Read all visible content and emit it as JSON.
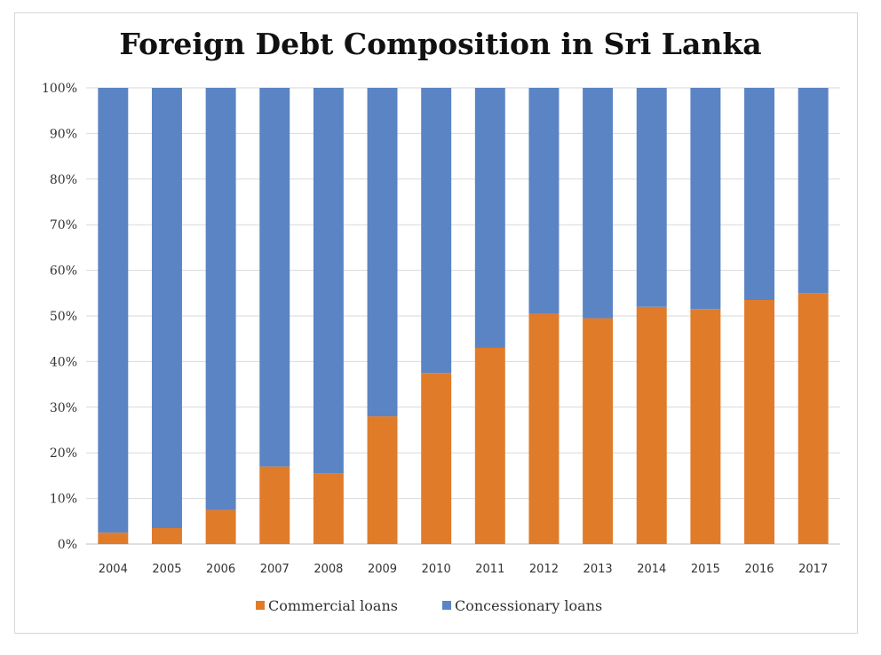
{
  "chart_data": {
    "type": "bar",
    "stacked": true,
    "title": "Foreign Debt Composition in Sri Lanka",
    "categories": [
      "2004",
      "2005",
      "2006",
      "2007",
      "2008",
      "2009",
      "2010",
      "2011",
      "2012",
      "2013",
      "2014",
      "2015",
      "2016",
      "2017"
    ],
    "series": [
      {
        "name": "Commercial loans",
        "color": "#e07b2a",
        "values": [
          2.5,
          3.5,
          7.5,
          17,
          15.5,
          28,
          37.5,
          43,
          50.5,
          49.5,
          52,
          51.5,
          53.5,
          55
        ]
      },
      {
        "name": "Concessionary loans",
        "color": "#5b84c4",
        "values": [
          97.5,
          96.5,
          92.5,
          83,
          84.5,
          72,
          62.5,
          57,
          49.5,
          50.5,
          48,
          48.5,
          46.5,
          45
        ]
      }
    ],
    "yticks": [
      "0%",
      "10%",
      "20%",
      "30%",
      "40%",
      "50%",
      "60%",
      "70%",
      "80%",
      "90%",
      "100%"
    ],
    "ylim": [
      0,
      100
    ],
    "grid": true,
    "legend_position": "bottom"
  }
}
